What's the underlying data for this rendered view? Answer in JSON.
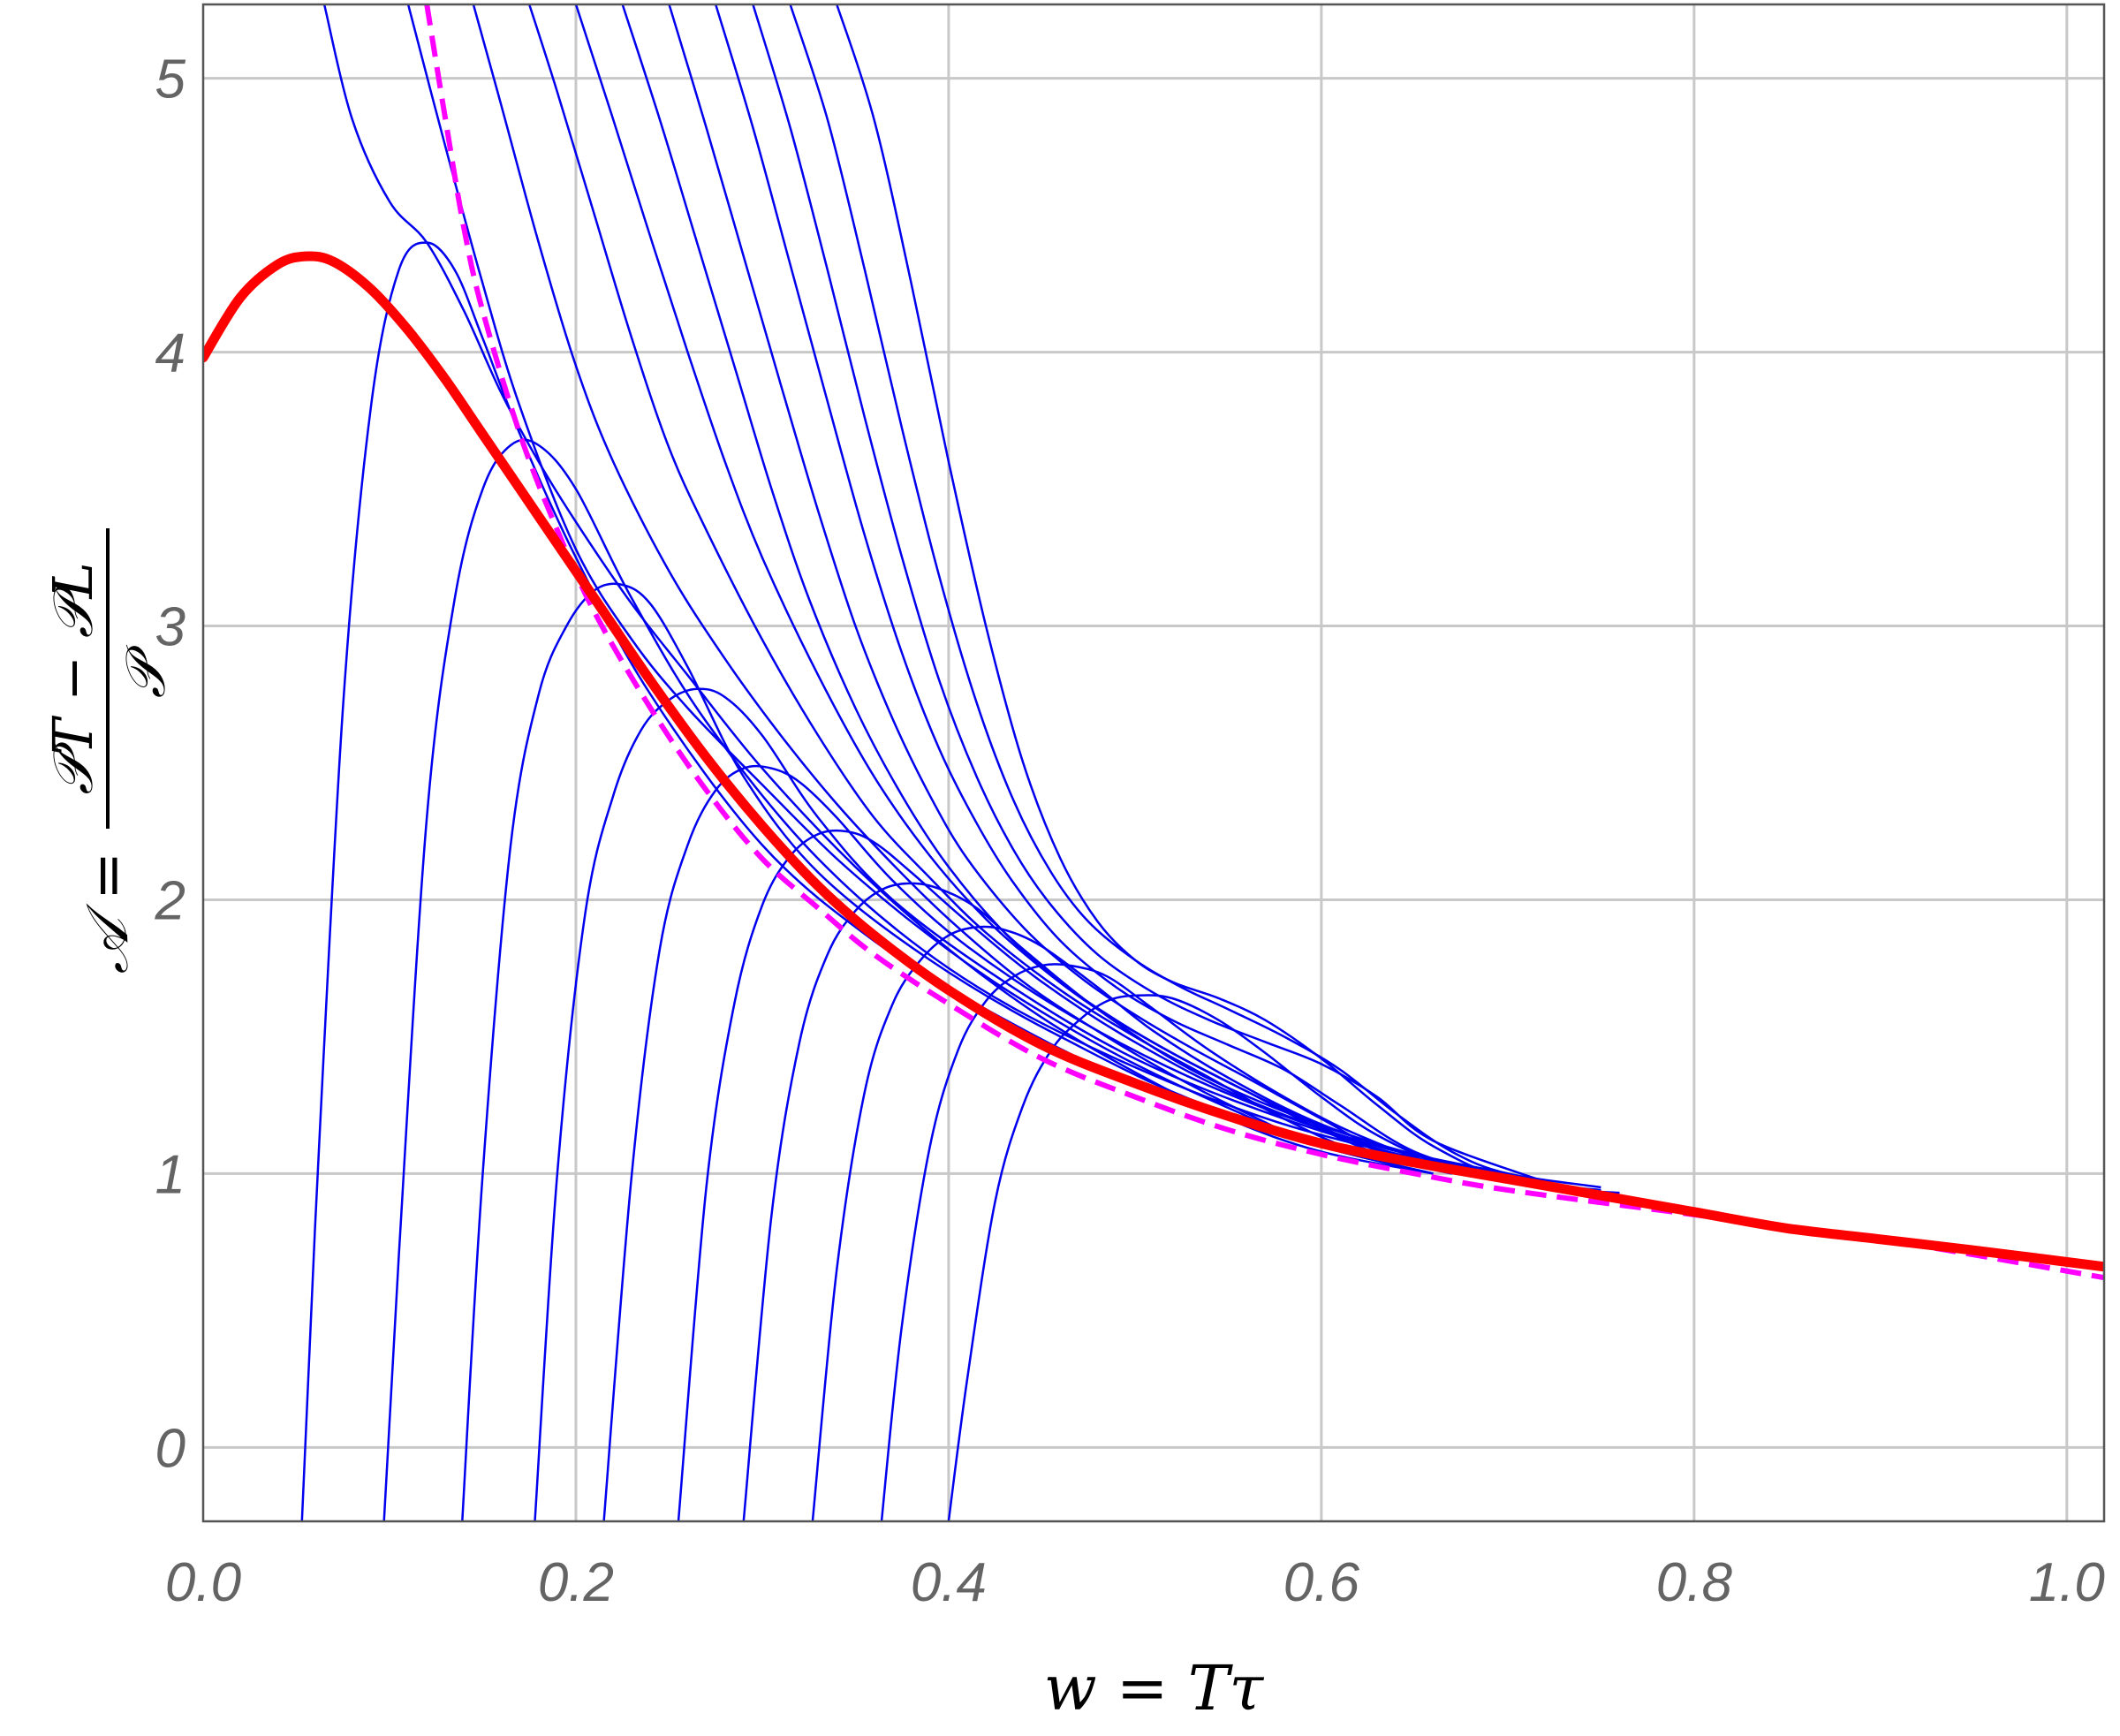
{
  "chart_data": {
    "type": "line",
    "xlabel": "w = Tτ",
    "ylabel": {
      "lhs": "𝒜 =",
      "numerator": "𝒫T − 𝒫L",
      "denominator": "𝒫"
    },
    "xlim": [
      0.0,
      1.02
    ],
    "ylim": [
      -0.27,
      5.27
    ],
    "x_ticks": [
      "0.0",
      "0.2",
      "0.4",
      "0.6",
      "0.8",
      "1.0"
    ],
    "y_ticks": [
      "0",
      "1",
      "2",
      "3",
      "4",
      "5"
    ],
    "grid": true,
    "colors": {
      "red_curve": "#ff0000",
      "dashed_curve": "#ff00ff",
      "blue_family": "#0000ee",
      "grid": "#c8c8c8",
      "frame": "#555555"
    },
    "series": [
      {
        "style": "thick-red",
        "x": [
          0.0,
          0.02,
          0.04,
          0.055,
          0.07,
          0.09,
          0.11,
          0.13,
          0.15,
          0.18,
          0.21,
          0.24,
          0.27,
          0.3,
          0.33,
          0.36,
          0.4,
          0.45,
          0.5,
          0.55,
          0.6,
          0.65,
          0.7,
          0.75,
          0.8,
          0.85,
          0.9,
          0.95,
          1.02
        ],
        "y": [
          3.98,
          4.2,
          4.32,
          4.35,
          4.33,
          4.23,
          4.08,
          3.9,
          3.7,
          3.4,
          3.1,
          2.8,
          2.52,
          2.27,
          2.05,
          1.87,
          1.67,
          1.47,
          1.33,
          1.21,
          1.11,
          1.04,
          0.98,
          0.92,
          0.86,
          0.8,
          0.76,
          0.72,
          0.66
        ]
      },
      {
        "style": "dashed-magenta",
        "x": [
          0.12,
          0.13,
          0.14,
          0.15,
          0.17,
          0.19,
          0.21,
          0.24,
          0.27,
          0.3,
          0.33,
          0.36,
          0.4,
          0.45,
          0.5,
          0.55,
          0.6,
          0.65,
          0.7,
          0.8,
          0.9,
          1.02
        ],
        "y": [
          5.27,
          4.85,
          4.45,
          4.15,
          3.7,
          3.35,
          3.05,
          2.7,
          2.4,
          2.15,
          1.97,
          1.8,
          1.62,
          1.42,
          1.28,
          1.16,
          1.07,
          1.0,
          0.94,
          0.85,
          0.76,
          0.62
        ]
      },
      {
        "style": "thin-blue",
        "x": [
          0.053,
          0.06,
          0.075,
          0.09,
          0.105,
          0.12,
          0.135,
          0.15,
          0.17,
          0.2,
          0.24,
          0.3,
          0.36,
          0.42,
          0.5,
          0.6,
          0.7
        ],
        "y": [
          -0.27,
          0.8,
          2.7,
          3.8,
          4.3,
          4.4,
          4.3,
          4.05,
          3.7,
          3.25,
          2.75,
          2.2,
          1.85,
          1.6,
          1.33,
          1.1,
          0.98
        ]
      },
      {
        "style": "thin-blue",
        "x": [
          0.097,
          0.105,
          0.12,
          0.135,
          0.15,
          0.165,
          0.18,
          0.2,
          0.23,
          0.27,
          0.33,
          0.4,
          0.48,
          0.58,
          0.7
        ],
        "y": [
          -0.27,
          0.7,
          2.3,
          3.1,
          3.5,
          3.66,
          3.66,
          3.5,
          3.1,
          2.65,
          2.15,
          1.75,
          1.45,
          1.18,
          0.98
        ]
      },
      {
        "style": "thin-blue",
        "x": [
          0.139,
          0.15,
          0.165,
          0.18,
          0.195,
          0.21,
          0.225,
          0.24,
          0.26,
          0.29,
          0.33,
          0.39,
          0.46,
          0.55,
          0.68
        ],
        "y": [
          -0.27,
          1.0,
          2.2,
          2.75,
          3.0,
          3.13,
          3.15,
          3.08,
          2.85,
          2.45,
          2.1,
          1.78,
          1.5,
          1.22,
          0.99
        ]
      },
      {
        "style": "thin-blue",
        "x": [
          0.178,
          0.19,
          0.205,
          0.22,
          0.235,
          0.25,
          0.265,
          0.28,
          0.3,
          0.33,
          0.37,
          0.43,
          0.5,
          0.58,
          0.68
        ],
        "y": [
          -0.27,
          1.0,
          1.95,
          2.38,
          2.62,
          2.73,
          2.77,
          2.74,
          2.6,
          2.3,
          2.0,
          1.7,
          1.42,
          1.2,
          0.99
        ]
      },
      {
        "style": "thin-blue",
        "x": [
          0.215,
          0.23,
          0.245,
          0.26,
          0.275,
          0.29,
          0.305,
          0.32,
          0.34,
          0.37,
          0.41,
          0.47,
          0.54,
          0.62,
          0.7
        ],
        "y": [
          -0.27,
          1.0,
          1.82,
          2.2,
          2.4,
          2.48,
          2.48,
          2.43,
          2.3,
          2.07,
          1.83,
          1.56,
          1.32,
          1.12,
          1.0
        ]
      },
      {
        "style": "thin-blue",
        "x": [
          0.255,
          0.27,
          0.285,
          0.3,
          0.315,
          0.33,
          0.345,
          0.36,
          0.38,
          0.41,
          0.45,
          0.5,
          0.56,
          0.63,
          0.7
        ],
        "y": [
          -0.27,
          0.95,
          1.62,
          1.98,
          2.16,
          2.24,
          2.25,
          2.21,
          2.1,
          1.92,
          1.7,
          1.48,
          1.27,
          1.1,
          1.0
        ]
      },
      {
        "style": "thin-blue",
        "x": [
          0.29,
          0.305,
          0.32,
          0.335,
          0.35,
          0.365,
          0.38,
          0.395,
          0.415,
          0.44,
          0.48,
          0.53,
          0.59,
          0.65,
          0.72
        ],
        "y": [
          -0.27,
          0.85,
          1.48,
          1.8,
          1.96,
          2.04,
          2.06,
          2.04,
          1.97,
          1.82,
          1.6,
          1.38,
          1.2,
          1.07,
          0.97
        ]
      },
      {
        "style": "thin-blue",
        "x": [
          0.327,
          0.34,
          0.355,
          0.37,
          0.385,
          0.4,
          0.415,
          0.43,
          0.45,
          0.48,
          0.51,
          0.55,
          0.6,
          0.66,
          0.74
        ],
        "y": [
          -0.27,
          0.65,
          1.3,
          1.62,
          1.78,
          1.87,
          1.9,
          1.89,
          1.83,
          1.68,
          1.52,
          1.35,
          1.18,
          1.05,
          0.94
        ]
      },
      {
        "style": "thin-blue",
        "x": [
          0.364,
          0.375,
          0.39,
          0.405,
          0.42,
          0.435,
          0.45,
          0.465,
          0.485,
          0.51,
          0.54,
          0.58,
          0.62,
          0.67,
          0.74
        ],
        "y": [
          -0.27,
          0.45,
          1.1,
          1.45,
          1.63,
          1.72,
          1.76,
          1.76,
          1.72,
          1.6,
          1.45,
          1.28,
          1.14,
          1.02,
          0.94
        ]
      },
      {
        "style": "thin-blue",
        "x": [
          0.4,
          0.41,
          0.425,
          0.44,
          0.455,
          0.47,
          0.485,
          0.5,
          0.52,
          0.545,
          0.57,
          0.6,
          0.63,
          0.67,
          0.72,
          0.76
        ],
        "y": [
          -0.27,
          0.25,
          0.9,
          1.25,
          1.45,
          1.56,
          1.63,
          1.65,
          1.64,
          1.56,
          1.44,
          1.28,
          1.14,
          1.02,
          0.95,
          0.93
        ]
      },
      {
        "style": "thin-blue",
        "x": [
          0.065,
          0.08,
          0.1,
          0.12,
          0.14,
          0.16,
          0.18,
          0.2,
          0.23,
          0.26,
          0.3,
          0.35,
          0.4,
          0.45,
          0.5,
          0.55,
          0.6,
          0.66
        ],
        "y": [
          5.27,
          4.85,
          4.55,
          4.4,
          4.15,
          3.85,
          3.6,
          3.38,
          3.08,
          2.82,
          2.48,
          2.12,
          1.82,
          1.57,
          1.37,
          1.2,
          1.08,
          1.0
        ]
      },
      {
        "style": "thin-blue",
        "x": [
          0.11,
          0.13,
          0.15,
          0.17,
          0.2,
          0.23,
          0.26,
          0.3,
          0.34,
          0.38,
          0.42,
          0.46,
          0.5,
          0.55,
          0.6,
          0.66
        ],
        "y": [
          5.27,
          4.75,
          4.25,
          3.8,
          3.28,
          2.95,
          2.7,
          2.42,
          2.15,
          1.92,
          1.72,
          1.55,
          1.4,
          1.24,
          1.1,
          1.0
        ]
      },
      {
        "style": "thin-blue",
        "x": [
          0.145,
          0.16,
          0.18,
          0.2,
          0.22,
          0.25,
          0.28,
          0.31,
          0.34,
          0.37,
          0.4,
          0.44,
          0.48,
          0.52,
          0.56,
          0.6,
          0.66
        ],
        "y": [
          5.27,
          4.9,
          4.4,
          3.95,
          3.6,
          3.2,
          2.88,
          2.6,
          2.35,
          2.13,
          1.93,
          1.7,
          1.52,
          1.36,
          1.22,
          1.1,
          1.0
        ]
      },
      {
        "style": "thin-blue",
        "x": [
          0.175,
          0.19,
          0.21,
          0.23,
          0.25,
          0.27,
          0.3,
          0.33,
          0.36,
          0.39,
          0.42,
          0.46,
          0.5,
          0.54,
          0.58,
          0.62,
          0.67
        ],
        "y": [
          5.27,
          4.95,
          4.5,
          4.05,
          3.65,
          3.35,
          2.95,
          2.6,
          2.3,
          2.08,
          1.88,
          1.67,
          1.5,
          1.35,
          1.2,
          1.08,
          1.0
        ]
      },
      {
        "style": "thin-blue",
        "x": [
          0.2,
          0.22,
          0.24,
          0.26,
          0.28,
          0.3,
          0.33,
          0.36,
          0.39,
          0.42,
          0.45,
          0.48,
          0.52,
          0.56,
          0.6,
          0.64,
          0.68
        ],
        "y": [
          5.27,
          4.85,
          4.42,
          4.0,
          3.6,
          3.25,
          2.82,
          2.45,
          2.16,
          1.93,
          1.75,
          1.6,
          1.44,
          1.3,
          1.17,
          1.06,
          1.0
        ]
      },
      {
        "style": "thin-blue",
        "x": [
          0.225,
          0.245,
          0.265,
          0.285,
          0.305,
          0.325,
          0.35,
          0.375,
          0.4,
          0.43,
          0.46,
          0.49,
          0.52,
          0.56,
          0.6,
          0.64,
          0.68
        ],
        "y": [
          5.27,
          4.85,
          4.4,
          3.95,
          3.5,
          3.1,
          2.7,
          2.38,
          2.12,
          1.88,
          1.7,
          1.56,
          1.44,
          1.3,
          1.16,
          1.05,
          1.0
        ]
      },
      {
        "style": "thin-blue",
        "x": [
          0.25,
          0.27,
          0.29,
          0.31,
          0.33,
          0.35,
          0.37,
          0.39,
          0.41,
          0.44,
          0.47,
          0.5,
          0.53,
          0.56,
          0.6,
          0.64,
          0.69
        ],
        "y": [
          5.27,
          4.82,
          4.35,
          3.88,
          3.42,
          3.0,
          2.66,
          2.38,
          2.15,
          1.9,
          1.72,
          1.58,
          1.46,
          1.35,
          1.2,
          1.06,
          0.99
        ]
      },
      {
        "style": "thin-blue",
        "x": [
          0.275,
          0.295,
          0.315,
          0.335,
          0.355,
          0.375,
          0.395,
          0.415,
          0.435,
          0.46,
          0.49,
          0.52,
          0.55,
          0.58,
          0.61,
          0.65,
          0.7
        ],
        "y": [
          5.27,
          4.82,
          4.32,
          3.82,
          3.33,
          2.9,
          2.55,
          2.28,
          2.06,
          1.85,
          1.68,
          1.56,
          1.47,
          1.38,
          1.25,
          1.08,
          0.98
        ]
      },
      {
        "style": "thin-blue",
        "x": [
          0.295,
          0.315,
          0.335,
          0.355,
          0.375,
          0.395,
          0.415,
          0.435,
          0.455,
          0.48,
          0.51,
          0.54,
          0.57,
          0.6,
          0.63,
          0.66,
          0.72
        ],
        "y": [
          5.27,
          4.82,
          4.3,
          3.76,
          3.25,
          2.8,
          2.45,
          2.18,
          1.98,
          1.8,
          1.66,
          1.56,
          1.48,
          1.4,
          1.28,
          1.12,
          0.97
        ]
      },
      {
        "style": "thin-blue",
        "x": [
          0.315,
          0.335,
          0.355,
          0.375,
          0.395,
          0.415,
          0.435,
          0.455,
          0.475,
          0.5,
          0.525,
          0.55,
          0.58,
          0.61,
          0.64,
          0.67,
          0.7,
          0.75
        ],
        "y": [
          5.27,
          4.85,
          4.3,
          3.72,
          3.18,
          2.72,
          2.36,
          2.1,
          1.92,
          1.78,
          1.68,
          1.6,
          1.5,
          1.38,
          1.22,
          1.08,
          1.0,
          0.95
        ]
      },
      {
        "style": "thin-blue",
        "x": [
          0.34,
          0.36,
          0.38,
          0.4,
          0.42,
          0.44,
          0.46,
          0.48,
          0.5,
          0.52,
          0.545,
          0.57,
          0.6,
          0.63,
          0.66,
          0.7,
          0.75
        ],
        "y": [
          5.27,
          4.85,
          4.25,
          3.6,
          3.0,
          2.5,
          2.15,
          1.92,
          1.78,
          1.7,
          1.64,
          1.56,
          1.42,
          1.25,
          1.1,
          0.98,
          0.94
        ]
      }
    ]
  }
}
